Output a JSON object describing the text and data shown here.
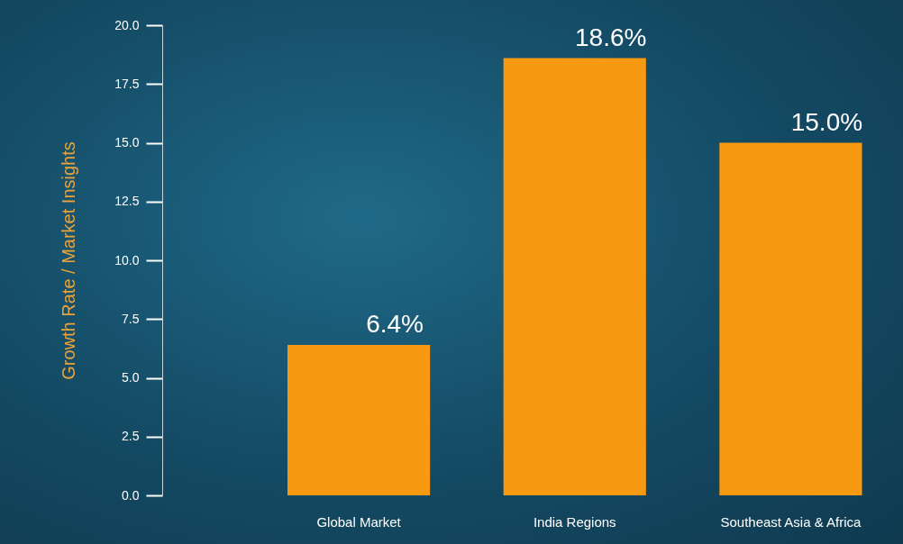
{
  "chart_data": {
    "type": "bar",
    "ylabel": "Growth Rate / Market Insights",
    "categories": [
      "Global Market",
      "India Regions",
      "Southeast Asia & Africa"
    ],
    "values": [
      6.4,
      18.6,
      15.0
    ],
    "value_labels": [
      "6.4%",
      "18.6%",
      "15.0%"
    ],
    "color": "#f79a12",
    "ylim": [
      0,
      20
    ],
    "yticks": [
      {
        "value": 0,
        "label": "0.0"
      },
      {
        "value": 2.5,
        "label": "2.5"
      },
      {
        "value": 5,
        "label": "5.0"
      },
      {
        "value": 7.5,
        "label": "7.5"
      },
      {
        "value": 10,
        "label": "10.0"
      },
      {
        "value": 12.5,
        "label": "12.5"
      },
      {
        "value": 15,
        "label": "15.0"
      },
      {
        "value": 17.5,
        "label": "17.5"
      },
      {
        "value": 20,
        "label": "20.0"
      }
    ],
    "grid": false
  }
}
